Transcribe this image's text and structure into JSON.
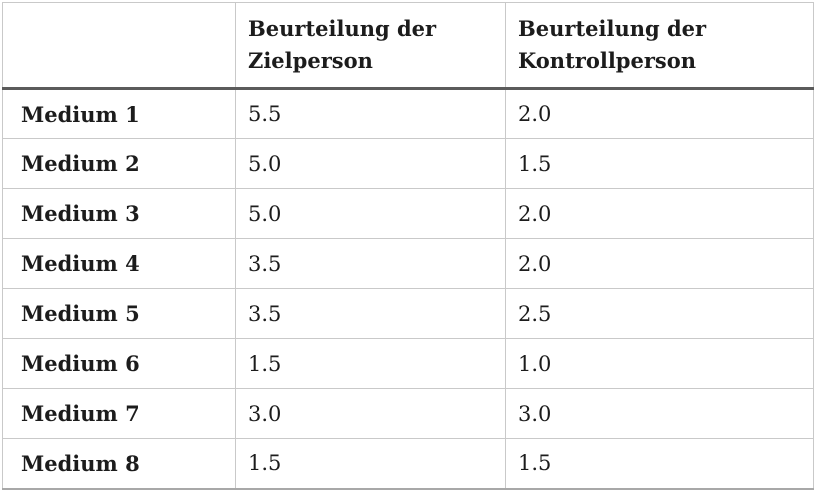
{
  "table": {
    "headers": [
      "",
      "Beurteilung der Zielperson",
      "Beurteilung der Kontrollperson"
    ],
    "rows": [
      {
        "label": "Medium 1",
        "zielperson": "5.5",
        "kontrollperson": "2.0"
      },
      {
        "label": "Medium 2",
        "zielperson": "5.0",
        "kontrollperson": "1.5"
      },
      {
        "label": "Medium 3",
        "zielperson": "5.0",
        "kontrollperson": "2.0"
      },
      {
        "label": "Medium 4",
        "zielperson": "3.5",
        "kontrollperson": "2.0"
      },
      {
        "label": "Medium 5",
        "zielperson": "3.5",
        "kontrollperson": "2.5"
      },
      {
        "label": "Medium 6",
        "zielperson": "1.5",
        "kontrollperson": "1.0"
      },
      {
        "label": "Medium 7",
        "zielperson": "3.0",
        "kontrollperson": "3.0"
      },
      {
        "label": "Medium 8",
        "zielperson": "1.5",
        "kontrollperson": "1.5"
      }
    ]
  },
  "colors": {
    "grid_light": "#c9c9c9",
    "header_rule": "#5b5b5b",
    "bottom_rule": "#a8a8a8",
    "text": "#1c1c1c"
  }
}
